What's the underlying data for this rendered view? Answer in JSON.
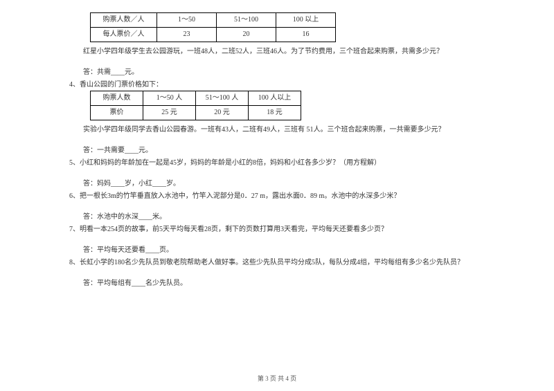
{
  "table1": {
    "headers": [
      "购票人数／人",
      "1～50",
      "51～100",
      "100 以上"
    ],
    "row2": [
      "每人票价／人",
      "23",
      "20",
      "16"
    ]
  },
  "q3": {
    "text": "红星小学四年级学生去公园游玩，一班48人，二班52人，三班46人。为了节约费用，三个班合起来购票，共需多少元？",
    "answer": "答：共需____元。"
  },
  "q4": {
    "intro": "4、香山公园的门票价格如下：",
    "table": {
      "headers": [
        "购票人数",
        "1～50 人",
        "51～100 人",
        "100 人以上"
      ],
      "row2": [
        "票价",
        "25 元",
        "20 元",
        "18 元"
      ]
    },
    "text": "实验小学四年级同学去香山公园春游。一班有43人，二班有49人，三班有 51人。三个班合起来购票，一共需要多少元？",
    "answer": "答：一共需要____元。"
  },
  "q5": {
    "text": "5、小红和妈妈的年龄加在一起是45岁，妈妈的年龄是小红的8倍，妈妈和小红各多少岁？（用方程解）",
    "answer": "答：妈妈____岁，小红____岁。"
  },
  "q6": {
    "text": "6、把一根长3m的竹竿垂直放入水池中，竹竿入泥部分是0．27 m，露出水面0．89 m。水池中的水深多少米？",
    "answer": "答：水池中的水深____米。"
  },
  "q7": {
    "text": "7、明看一本254页的故事，前5天平均每天看28页，剩下的页数打算用3天看完，平均每天还要看多少页？",
    "answer": "答：平均每天还要看____页。"
  },
  "q8": {
    "text": "8、长虹小学的180名少先队员到敬老院帮助老人做好事。这些少先队员平均分成5队，每队分成4组，平均每组有多少名少先队员？",
    "answer": "答：平均每组有____名少先队员。"
  },
  "footer": "第 3 页 共 4 页"
}
